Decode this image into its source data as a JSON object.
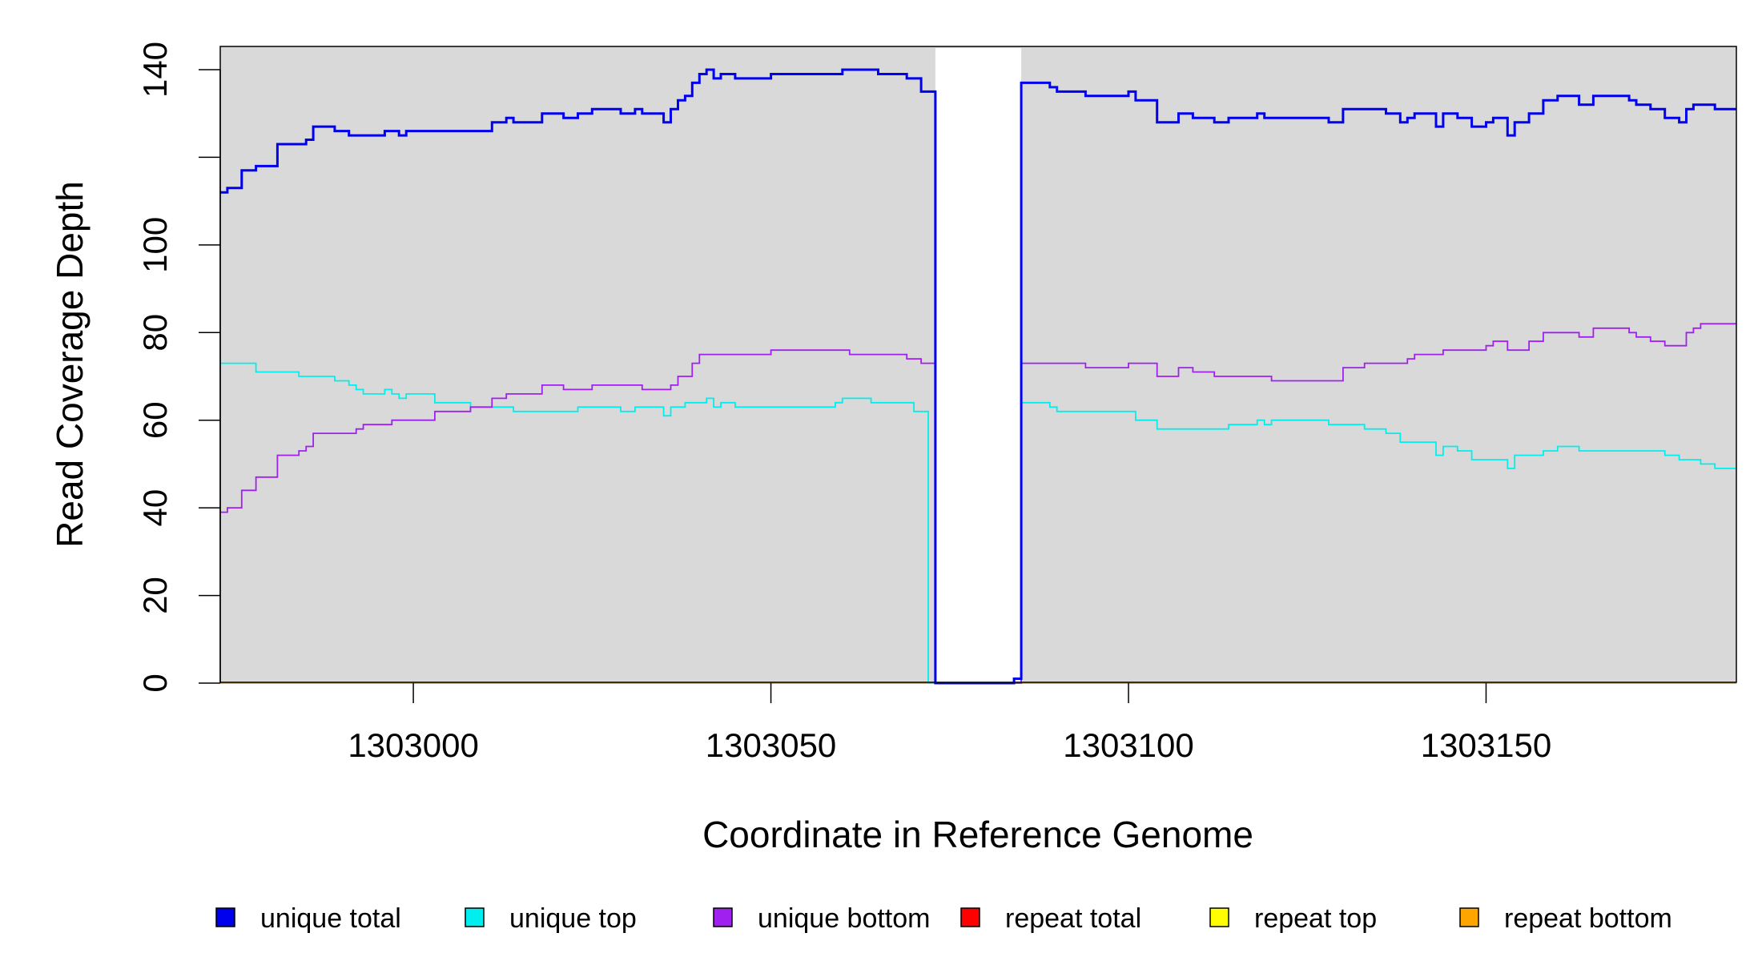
{
  "chart_data": {
    "type": "line",
    "step": true,
    "xlabel": "Coordinate in Reference Genome",
    "ylabel": "Read Coverage Depth",
    "xlim": [
      1302973,
      1303185
    ],
    "ylim": [
      0,
      145
    ],
    "xticks": [
      1303000,
      1303050,
      1303100,
      1303150
    ],
    "xtick_labels": [
      "1303000",
      "1303050",
      "1303100",
      "1303150"
    ],
    "yticks": [
      0,
      20,
      40,
      60,
      80,
      100,
      120,
      140
    ],
    "ytick_labels": [
      "0",
      "20",
      "40",
      "60",
      "80",
      "100",
      "",
      "140"
    ],
    "background": "#d9d9d9",
    "grid": false,
    "legend_position": "bottom",
    "gap_region": [
      1303073,
      1303085
    ],
    "series": [
      {
        "name": "unique total",
        "color": "#0000ee",
        "points": [
          [
            1302973,
            112
          ],
          [
            1302974,
            113
          ],
          [
            1302976,
            117
          ],
          [
            1302978,
            118
          ],
          [
            1302981,
            123
          ],
          [
            1302985,
            124
          ],
          [
            1302986,
            127
          ],
          [
            1302989,
            126
          ],
          [
            1302991,
            125
          ],
          [
            1302996,
            126
          ],
          [
            1302998,
            125
          ],
          [
            1302999,
            126
          ],
          [
            1303011,
            128
          ],
          [
            1303013,
            129
          ],
          [
            1303014,
            128
          ],
          [
            1303018,
            130
          ],
          [
            1303021,
            129
          ],
          [
            1303023,
            130
          ],
          [
            1303025,
            131
          ],
          [
            1303029,
            130
          ],
          [
            1303031,
            131
          ],
          [
            1303032,
            130
          ],
          [
            1303035,
            128
          ],
          [
            1303036,
            131
          ],
          [
            1303037,
            133
          ],
          [
            1303038,
            134
          ],
          [
            1303039,
            137
          ],
          [
            1303040,
            139
          ],
          [
            1303041,
            140
          ],
          [
            1303042,
            138
          ],
          [
            1303043,
            139
          ],
          [
            1303045,
            138
          ],
          [
            1303050,
            139
          ],
          [
            1303060,
            140
          ],
          [
            1303065,
            139
          ],
          [
            1303069,
            138
          ],
          [
            1303071,
            135
          ],
          [
            1303073,
            0
          ],
          [
            1303084,
            1
          ],
          [
            1303085,
            137
          ],
          [
            1303089,
            136
          ],
          [
            1303090,
            135
          ],
          [
            1303094,
            134
          ],
          [
            1303100,
            135
          ],
          [
            1303101,
            133
          ],
          [
            1303104,
            128
          ],
          [
            1303107,
            130
          ],
          [
            1303109,
            129
          ],
          [
            1303112,
            128
          ],
          [
            1303114,
            129
          ],
          [
            1303118,
            130
          ],
          [
            1303119,
            129
          ],
          [
            1303124,
            129
          ],
          [
            1303128,
            128
          ],
          [
            1303130,
            131
          ],
          [
            1303136,
            130
          ],
          [
            1303138,
            128
          ],
          [
            1303139,
            129
          ],
          [
            1303140,
            130
          ],
          [
            1303143,
            127
          ],
          [
            1303144,
            130
          ],
          [
            1303146,
            129
          ],
          [
            1303148,
            127
          ],
          [
            1303150,
            128
          ],
          [
            1303151,
            129
          ],
          [
            1303153,
            125
          ],
          [
            1303154,
            128
          ],
          [
            1303156,
            130
          ],
          [
            1303158,
            133
          ],
          [
            1303160,
            134
          ],
          [
            1303163,
            132
          ],
          [
            1303165,
            134
          ],
          [
            1303170,
            133
          ],
          [
            1303171,
            132
          ],
          [
            1303173,
            131
          ],
          [
            1303175,
            129
          ],
          [
            1303177,
            128
          ],
          [
            1303178,
            131
          ],
          [
            1303179,
            132
          ],
          [
            1303182,
            131
          ],
          [
            1303185,
            131
          ]
        ]
      },
      {
        "name": "unique top",
        "color": "#00eeee",
        "points": [
          [
            1302973,
            73
          ],
          [
            1302978,
            71
          ],
          [
            1302984,
            70
          ],
          [
            1302989,
            69
          ],
          [
            1302991,
            68
          ],
          [
            1302992,
            67
          ],
          [
            1302993,
            66
          ],
          [
            1302996,
            67
          ],
          [
            1302997,
            66
          ],
          [
            1302998,
            65
          ],
          [
            1302999,
            66
          ],
          [
            1303003,
            64
          ],
          [
            1303008,
            63
          ],
          [
            1303014,
            62
          ],
          [
            1303023,
            63
          ],
          [
            1303029,
            62
          ],
          [
            1303031,
            63
          ],
          [
            1303035,
            61
          ],
          [
            1303036,
            63
          ],
          [
            1303038,
            64
          ],
          [
            1303041,
            65
          ],
          [
            1303042,
            63
          ],
          [
            1303043,
            64
          ],
          [
            1303045,
            63
          ],
          [
            1303059,
            64
          ],
          [
            1303060,
            65
          ],
          [
            1303064,
            64
          ],
          [
            1303070,
            62
          ],
          [
            1303072,
            0
          ],
          [
            1303085,
            64
          ],
          [
            1303089,
            63
          ],
          [
            1303090,
            62
          ],
          [
            1303101,
            60
          ],
          [
            1303104,
            58
          ],
          [
            1303114,
            59
          ],
          [
            1303118,
            60
          ],
          [
            1303119,
            59
          ],
          [
            1303120,
            60
          ],
          [
            1303128,
            59
          ],
          [
            1303133,
            58
          ],
          [
            1303136,
            57
          ],
          [
            1303138,
            55
          ],
          [
            1303143,
            52
          ],
          [
            1303144,
            54
          ],
          [
            1303146,
            53
          ],
          [
            1303148,
            51
          ],
          [
            1303153,
            49
          ],
          [
            1303154,
            52
          ],
          [
            1303158,
            53
          ],
          [
            1303160,
            54
          ],
          [
            1303163,
            53
          ],
          [
            1303175,
            52
          ],
          [
            1303177,
            51
          ],
          [
            1303180,
            50
          ],
          [
            1303182,
            49
          ],
          [
            1303185,
            49
          ]
        ]
      },
      {
        "name": "unique bottom",
        "color": "#a020f0",
        "points": [
          [
            1302973,
            39
          ],
          [
            1302974,
            40
          ],
          [
            1302976,
            44
          ],
          [
            1302978,
            47
          ],
          [
            1302981,
            52
          ],
          [
            1302984,
            53
          ],
          [
            1302985,
            54
          ],
          [
            1302986,
            57
          ],
          [
            1302992,
            58
          ],
          [
            1302993,
            59
          ],
          [
            1302997,
            60
          ],
          [
            1303003,
            62
          ],
          [
            1303008,
            63
          ],
          [
            1303011,
            65
          ],
          [
            1303013,
            66
          ],
          [
            1303018,
            68
          ],
          [
            1303021,
            67
          ],
          [
            1303025,
            68
          ],
          [
            1303032,
            67
          ],
          [
            1303036,
            68
          ],
          [
            1303037,
            70
          ],
          [
            1303039,
            73
          ],
          [
            1303040,
            75
          ],
          [
            1303050,
            76
          ],
          [
            1303061,
            75
          ],
          [
            1303069,
            74
          ],
          [
            1303071,
            73
          ],
          [
            1303073,
            0
          ],
          [
            1303085,
            73
          ],
          [
            1303094,
            72
          ],
          [
            1303100,
            73
          ],
          [
            1303104,
            70
          ],
          [
            1303107,
            72
          ],
          [
            1303109,
            71
          ],
          [
            1303112,
            70
          ],
          [
            1303120,
            69
          ],
          [
            1303130,
            72
          ],
          [
            1303133,
            73
          ],
          [
            1303139,
            74
          ],
          [
            1303140,
            75
          ],
          [
            1303144,
            76
          ],
          [
            1303150,
            77
          ],
          [
            1303151,
            78
          ],
          [
            1303153,
            76
          ],
          [
            1303156,
            78
          ],
          [
            1303158,
            80
          ],
          [
            1303163,
            79
          ],
          [
            1303165,
            81
          ],
          [
            1303170,
            80
          ],
          [
            1303171,
            79
          ],
          [
            1303173,
            78
          ],
          [
            1303175,
            77
          ],
          [
            1303178,
            80
          ],
          [
            1303179,
            81
          ],
          [
            1303180,
            82
          ],
          [
            1303185,
            82
          ]
        ]
      },
      {
        "name": "repeat total",
        "color": "#ff0000",
        "points": [
          [
            1302973,
            0
          ],
          [
            1303185,
            0
          ]
        ]
      },
      {
        "name": "repeat top",
        "color": "#ffff00",
        "points": [
          [
            1302973,
            0
          ],
          [
            1303185,
            0
          ]
        ]
      },
      {
        "name": "repeat bottom",
        "color": "#ffa500",
        "points": [
          [
            1302973,
            0
          ],
          [
            1303185,
            0
          ]
        ]
      }
    ]
  }
}
